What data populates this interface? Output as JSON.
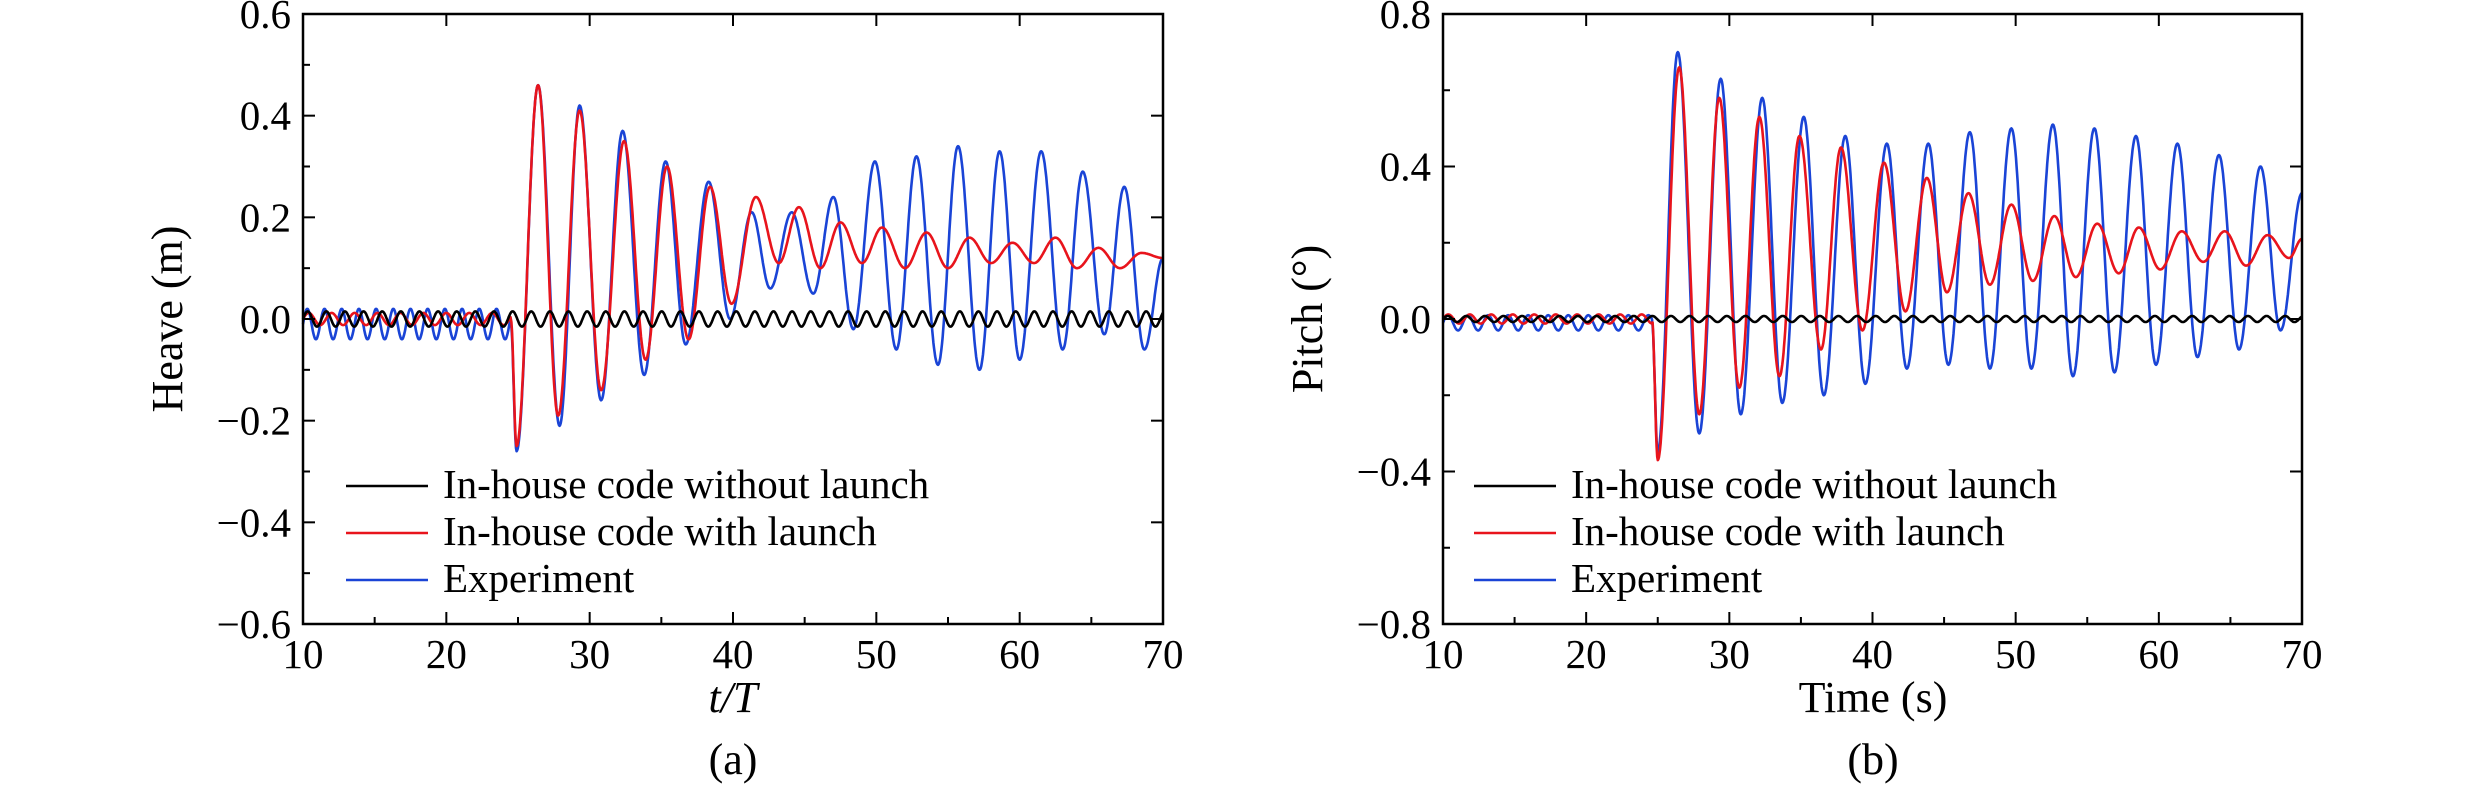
{
  "colors": {
    "without_launch": "#000000",
    "with_launch": "#e8141c",
    "experiment": "#1a44d6"
  },
  "chart_data": [
    {
      "type": "line",
      "panel": "(a)",
      "xlabel": "t/T",
      "ylabel": "Heave (m)",
      "xlim": [
        10,
        70
      ],
      "ylim": [
        -0.6,
        0.6
      ],
      "xticks": [
        "10",
        "20",
        "30",
        "40",
        "50",
        "60",
        "70"
      ],
      "yticks": [
        "0.6",
        "0.4",
        "0.2",
        "0.0",
        "−0.2",
        "−0.4",
        "−0.6"
      ],
      "legend_position": "bottom-left",
      "legend": [
        "In-house code without launch",
        "In-house code with launch",
        "Experiment"
      ],
      "series": [
        {
          "name": "In-house code without launch",
          "pattern": "sine",
          "t_start": 10,
          "t_end": 70,
          "offset": 0.0,
          "amplitude": 0.015,
          "period": 1.3
        },
        {
          "name": "In-house code with launch",
          "pattern": "decaying",
          "pre_launch": {
            "t_end": 24.5,
            "amplitude": 0.012,
            "period": 1.6
          },
          "launch_time": 24.5,
          "peaks": [
            [
              24.9,
              -0.25
            ],
            [
              26.4,
              0.46
            ],
            [
              27.8,
              -0.19
            ],
            [
              29.3,
              0.41
            ],
            [
              30.8,
              -0.14
            ],
            [
              32.4,
              0.35
            ],
            [
              33.9,
              -0.08
            ],
            [
              35.4,
              0.3
            ],
            [
              36.9,
              -0.04
            ],
            [
              38.4,
              0.26
            ],
            [
              39.9,
              0.03
            ],
            [
              41.6,
              0.24
            ],
            [
              43.2,
              0.11
            ],
            [
              44.6,
              0.22
            ],
            [
              46.1,
              0.1
            ],
            [
              47.5,
              0.19
            ],
            [
              49.0,
              0.11
            ],
            [
              50.4,
              0.18
            ],
            [
              52.0,
              0.1
            ],
            [
              53.5,
              0.17
            ],
            [
              55.0,
              0.1
            ],
            [
              56.5,
              0.16
            ],
            [
              58.0,
              0.11
            ],
            [
              59.5,
              0.15
            ],
            [
              61.0,
              0.11
            ],
            [
              62.5,
              0.16
            ],
            [
              64.0,
              0.1
            ],
            [
              65.5,
              0.14
            ],
            [
              67.0,
              0.1
            ],
            [
              68.5,
              0.13
            ],
            [
              70.0,
              0.12
            ]
          ]
        },
        {
          "name": "Experiment",
          "pattern": "growing",
          "pre_launch": {
            "t_end": 24.5,
            "amplitude": 0.03,
            "period": 1.2,
            "offset": -0.01
          },
          "launch_time": 24.5,
          "peaks": [
            [
              24.9,
              -0.26
            ],
            [
              26.4,
              0.46
            ],
            [
              27.9,
              -0.21
            ],
            [
              29.3,
              0.42
            ],
            [
              30.8,
              -0.16
            ],
            [
              32.3,
              0.37
            ],
            [
              33.8,
              -0.11
            ],
            [
              35.3,
              0.31
            ],
            [
              36.7,
              -0.05
            ],
            [
              38.3,
              0.27
            ],
            [
              39.8,
              0.0
            ],
            [
              41.3,
              0.21
            ],
            [
              42.6,
              0.06
            ],
            [
              44.1,
              0.21
            ],
            [
              45.6,
              0.05
            ],
            [
              47.0,
              0.24
            ],
            [
              48.4,
              -0.02
            ],
            [
              49.9,
              0.31
            ],
            [
              51.4,
              -0.06
            ],
            [
              52.8,
              0.32
            ],
            [
              54.3,
              -0.09
            ],
            [
              55.7,
              0.34
            ],
            [
              57.2,
              -0.1
            ],
            [
              58.6,
              0.33
            ],
            [
              60.0,
              -0.08
            ],
            [
              61.5,
              0.33
            ],
            [
              63.0,
              -0.06
            ],
            [
              64.4,
              0.29
            ],
            [
              65.9,
              -0.03
            ],
            [
              67.3,
              0.26
            ],
            [
              68.7,
              -0.06
            ],
            [
              70.0,
              0.12
            ]
          ]
        }
      ],
      "caption": "(a)"
    },
    {
      "type": "line",
      "panel": "(b)",
      "xlabel": "Time (s)",
      "ylabel": "Pitch (°)",
      "xlim": [
        10,
        70
      ],
      "ylim": [
        -0.8,
        0.8
      ],
      "xticks": [
        "10",
        "20",
        "30",
        "40",
        "50",
        "60",
        "70"
      ],
      "yticks": [
        "0.8",
        "0.4",
        "0.0",
        "−0.4",
        "−0.8"
      ],
      "legend_position": "bottom-left",
      "legend": [
        "In-house code without launch",
        "In-house code with launch",
        "Experiment"
      ],
      "series": [
        {
          "name": "In-house code without launch",
          "pattern": "sine",
          "t_start": 10,
          "t_end": 70,
          "offset": 0.0,
          "amplitude": 0.008,
          "period": 1.3
        },
        {
          "name": "In-house code with launch",
          "pattern": "decaying",
          "pre_launch": {
            "t_end": 24.6,
            "amplitude": 0.012,
            "period": 1.5
          },
          "launch_time": 24.6,
          "peaks": [
            [
              25.0,
              -0.37
            ],
            [
              26.5,
              0.66
            ],
            [
              27.9,
              -0.25
            ],
            [
              29.3,
              0.58
            ],
            [
              30.7,
              -0.18
            ],
            [
              32.1,
              0.53
            ],
            [
              33.5,
              -0.15
            ],
            [
              34.9,
              0.48
            ],
            [
              36.4,
              -0.08
            ],
            [
              37.8,
              0.45
            ],
            [
              39.3,
              -0.03
            ],
            [
              40.8,
              0.41
            ],
            [
              42.3,
              0.02
            ],
            [
              43.8,
              0.37
            ],
            [
              45.2,
              0.07
            ],
            [
              46.7,
              0.33
            ],
            [
              48.2,
              0.09
            ],
            [
              49.7,
              0.3
            ],
            [
              51.2,
              0.1
            ],
            [
              52.7,
              0.27
            ],
            [
              54.2,
              0.11
            ],
            [
              55.7,
              0.25
            ],
            [
              57.2,
              0.12
            ],
            [
              58.6,
              0.24
            ],
            [
              60.1,
              0.13
            ],
            [
              61.6,
              0.23
            ],
            [
              63.1,
              0.15
            ],
            [
              64.6,
              0.23
            ],
            [
              66.1,
              0.14
            ],
            [
              67.6,
              0.22
            ],
            [
              69.1,
              0.16
            ],
            [
              70.0,
              0.21
            ]
          ]
        },
        {
          "name": "Experiment",
          "pattern": "growing",
          "pre_launch": {
            "t_end": 24.6,
            "amplitude": 0.02,
            "period": 1.4,
            "offset": -0.01
          },
          "launch_time": 24.6,
          "peaks": [
            [
              25.0,
              -0.35
            ],
            [
              26.4,
              0.7
            ],
            [
              27.9,
              -0.3
            ],
            [
              29.4,
              0.63
            ],
            [
              30.8,
              -0.25
            ],
            [
              32.3,
              0.58
            ],
            [
              33.7,
              -0.22
            ],
            [
              35.2,
              0.53
            ],
            [
              36.6,
              -0.2
            ],
            [
              38.1,
              0.48
            ],
            [
              39.5,
              -0.17
            ],
            [
              41.0,
              0.46
            ],
            [
              42.4,
              -0.13
            ],
            [
              43.9,
              0.46
            ],
            [
              45.3,
              -0.12
            ],
            [
              46.8,
              0.49
            ],
            [
              48.2,
              -0.13
            ],
            [
              49.7,
              0.5
            ],
            [
              51.1,
              -0.13
            ],
            [
              52.6,
              0.51
            ],
            [
              54.0,
              -0.15
            ],
            [
              55.5,
              0.5
            ],
            [
              56.9,
              -0.14
            ],
            [
              58.4,
              0.48
            ],
            [
              59.8,
              -0.12
            ],
            [
              61.3,
              0.46
            ],
            [
              62.7,
              -0.1
            ],
            [
              64.2,
              0.43
            ],
            [
              65.6,
              -0.08
            ],
            [
              67.1,
              0.4
            ],
            [
              68.5,
              -0.03
            ],
            [
              70.0,
              0.33
            ]
          ]
        }
      ],
      "caption": "(b)"
    }
  ]
}
